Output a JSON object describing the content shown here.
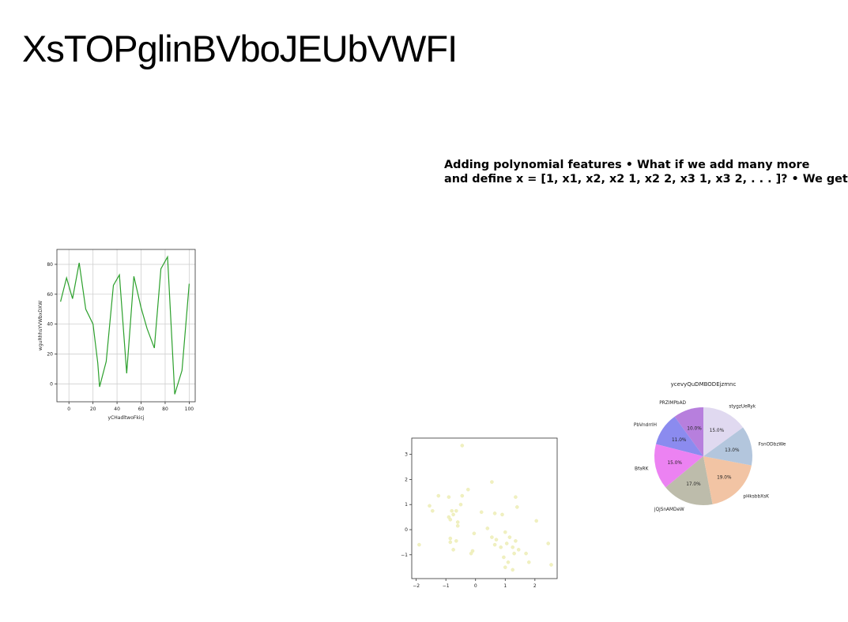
{
  "slide": {
    "title": "XsTOPglinBVboJEUbVWFI",
    "body_lines": [
      "Adding polynomial features • What if we add many more",
      "and define x = [1, x1, x2, x2 1, x2 2, x3 1, x3 2, . . . ]? • We get"
    ]
  },
  "chart_data": [
    {
      "type": "line",
      "title": "",
      "xlabel": "yCHadltwoFkicj",
      "ylabel": "wguRhhsYVWbxDXW",
      "xlim": [
        -10,
        105
      ],
      "ylim": [
        -12,
        90
      ],
      "xticks": [
        0,
        20,
        40,
        60,
        80,
        100
      ],
      "yticks": [
        0,
        20,
        40,
        60,
        80
      ],
      "grid": true,
      "color": "#2ca02c",
      "series": [
        {
          "x": [
            -7,
            -2,
            3,
            8.5,
            14,
            20,
            24,
            25.5,
            31,
            37,
            42,
            48,
            54,
            60,
            65,
            71,
            76.5,
            82,
            88,
            94,
            100
          ],
          "y": [
            55,
            71,
            57,
            81,
            50,
            40,
            14,
            -2,
            15,
            66,
            73,
            7,
            72,
            51,
            37,
            24,
            77,
            85,
            -7,
            9,
            67
          ]
        }
      ]
    },
    {
      "type": "scatter",
      "title": "",
      "xlabel": "",
      "ylabel": "",
      "xlim": [
        -2.15,
        2.75
      ],
      "ylim": [
        -1.95,
        3.65
      ],
      "xticks": [
        -2,
        -1,
        0,
        1,
        2
      ],
      "yticks": [
        -1,
        0,
        1,
        2,
        3
      ],
      "grid": false,
      "color": "#f0f0c0",
      "points": [
        [
          -0.45,
          3.35
        ],
        [
          0.55,
          1.9
        ],
        [
          -0.25,
          1.6
        ],
        [
          -0.45,
          1.35
        ],
        [
          -1.25,
          1.35
        ],
        [
          -0.9,
          1.3
        ],
        [
          1.35,
          1.3
        ],
        [
          -1.55,
          0.95
        ],
        [
          -0.5,
          1.0
        ],
        [
          1.4,
          0.9
        ],
        [
          -1.45,
          0.75
        ],
        [
          -0.8,
          0.75
        ],
        [
          -0.65,
          0.75
        ],
        [
          0.2,
          0.7
        ],
        [
          0.65,
          0.65
        ],
        [
          0.9,
          0.6
        ],
        [
          -0.75,
          0.6
        ],
        [
          -0.9,
          0.5
        ],
        [
          -0.85,
          0.4
        ],
        [
          -0.6,
          0.3
        ],
        [
          2.05,
          0.35
        ],
        [
          -0.6,
          0.15
        ],
        [
          0.4,
          0.05
        ],
        [
          1.0,
          -0.1
        ],
        [
          -0.05,
          -0.15
        ],
        [
          1.15,
          -0.3
        ],
        [
          0.55,
          -0.3
        ],
        [
          0.7,
          -0.4
        ],
        [
          -0.85,
          -0.35
        ],
        [
          -0.85,
          -0.5
        ],
        [
          -0.65,
          -0.45
        ],
        [
          1.35,
          -0.45
        ],
        [
          1.05,
          -0.55
        ],
        [
          0.65,
          -0.6
        ],
        [
          2.45,
          -0.55
        ],
        [
          -1.9,
          -0.6
        ],
        [
          0.85,
          -0.7
        ],
        [
          1.25,
          -0.7
        ],
        [
          1.45,
          -0.8
        ],
        [
          -0.75,
          -0.8
        ],
        [
          -0.1,
          -0.85
        ],
        [
          -0.15,
          -0.95
        ],
        [
          1.3,
          -0.95
        ],
        [
          1.7,
          -0.95
        ],
        [
          0.95,
          -1.1
        ],
        [
          1.1,
          -1.3
        ],
        [
          1.8,
          -1.3
        ],
        [
          2.55,
          -1.4
        ],
        [
          1.0,
          -1.5
        ],
        [
          1.25,
          -1.6
        ]
      ]
    },
    {
      "type": "pie",
      "title": "ycevyQuDMBODEjzmnc",
      "startangle": 90,
      "direction": "counterclockwise",
      "slices": [
        {
          "label": "PRZIMPbAD",
          "value": 10.0,
          "pct_label": "10.0%",
          "color": "#b77fdd"
        },
        {
          "label": "PbVndrrlH",
          "value": 11.0,
          "pct_label": "11.0%",
          "color": "#8b8bef"
        },
        {
          "label": "BfaRK",
          "value": 15.0,
          "pct_label": "15.0%",
          "color": "#ec82f2"
        },
        {
          "label": "jQjSnAMDeW",
          "value": 17.0,
          "pct_label": "17.0%",
          "color": "#bdbcab"
        },
        {
          "label": "pHksbbXsK",
          "value": 19.0,
          "pct_label": "19.0%",
          "color": "#f2c4a4"
        },
        {
          "label": "FsnODbzWe",
          "value": 13.0,
          "pct_label": "13.0%",
          "color": "#b3c6dd"
        },
        {
          "label": "stygzUeRyk",
          "value": 15.0,
          "pct_label": "15.0%",
          "color": "#e0d9f0"
        }
      ]
    }
  ]
}
